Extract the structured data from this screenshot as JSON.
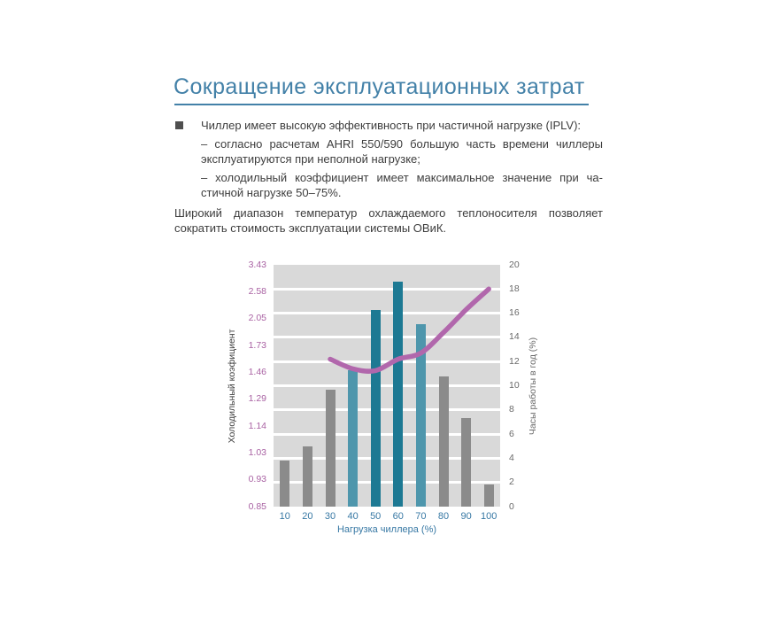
{
  "header": {
    "title": "Сокращение эксплуатационных затрат"
  },
  "content": {
    "bullet_item": {
      "text": "Чиллер имеет высокую эффективность при частичной нагрузке (IPLV):"
    },
    "sub_items": [
      {
        "line1": "– согласно расчетам AHRI 550/590 большую часть времени чиллеры",
        "line2": "эксплуатируются при неполной нагрузке;"
      },
      {
        "line1": "– холодильный коэффициент имеет максимальное значение при ча-",
        "line2": "стичной нагрузке 50–75%."
      }
    ],
    "paragraph": {
      "line1": "Широкий диапазон температур охлаждаемого теплоносителя позволяет",
      "line2": "сократить стоимость эксплуатации системы ОВиК."
    }
  },
  "chart_data": {
    "type": "bar",
    "categories": [
      10,
      20,
      30,
      40,
      50,
      60,
      70,
      80,
      90,
      100
    ],
    "xlabel": "Нагрузка чиллера (%)",
    "bars": {
      "name": "Часы работы в год (%)",
      "values": [
        3.8,
        5.0,
        9.7,
        11.3,
        16.3,
        18.6,
        15.1,
        10.8,
        7.3,
        1.8
      ],
      "color_keys": [
        "gray",
        "gray",
        "gray",
        "tealLight",
        "tealDark",
        "tealDark",
        "tealLight",
        "gray",
        "gray",
        "gray"
      ]
    },
    "line": {
      "name": "Холодильный коэфициент",
      "type": "line",
      "points": [
        [
          30,
          12.2
        ],
        [
          40,
          11.4
        ],
        [
          50,
          11.25
        ],
        [
          60,
          12.2
        ],
        [
          70,
          12.7
        ],
        [
          80,
          14.4
        ],
        [
          90,
          16.3
        ],
        [
          100,
          18.0
        ]
      ]
    },
    "left_axis": {
      "title": "Холодильный коэфициент",
      "tick_labels": [
        "3.43",
        "2.58",
        "2.05",
        "1.73",
        "1.46",
        "1.29",
        "1.14",
        "1.03",
        "0.93",
        "0.85"
      ]
    },
    "right_axis": {
      "title": "Часы работы в год (%)",
      "min": 0,
      "max": 20,
      "step": 2
    },
    "grid": true,
    "legend_position": "none"
  },
  "colors": {
    "title": "#4381a8",
    "body_text": "#3d3d3d",
    "bullet": "#4f4f4f",
    "plot_bg": "#d9d9d9",
    "grid": "#ffffff",
    "gray": "#8b8b8b",
    "tealLight": "#4e96ac",
    "tealDark": "#1d7993",
    "line": "#b167ac",
    "left_ticks": "#a962a3",
    "right_ticks": "#696969",
    "x_ticks": "#3778a4"
  }
}
